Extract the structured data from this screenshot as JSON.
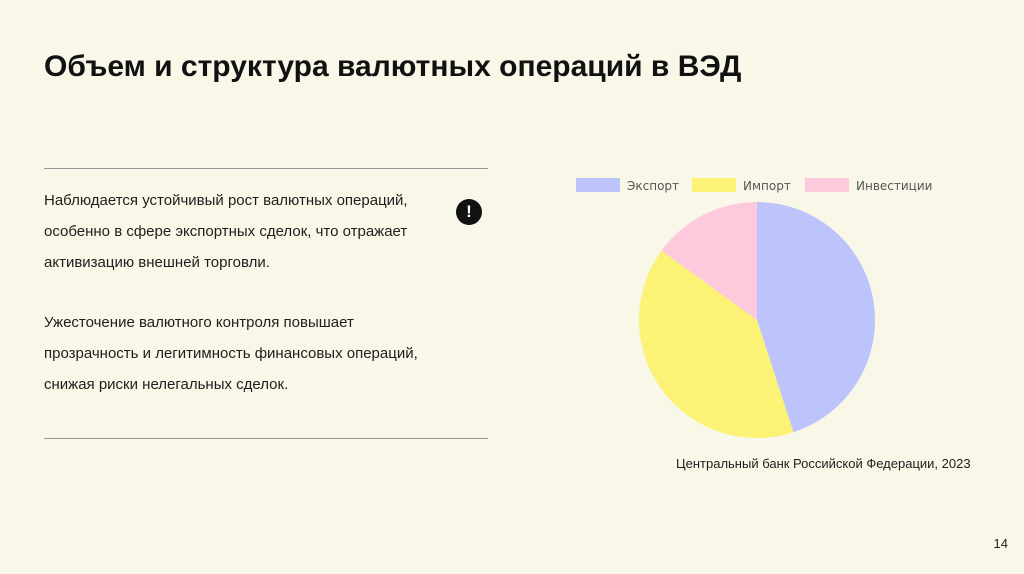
{
  "slide": {
    "title": "Объем и структура валютных операций в ВЭД",
    "paragraphs": [
      "Наблюдается устойчивый рост валютных операций, особенно в сфере экспортных сделок, что отражает активизацию внешней торговли.",
      "Ужесточение валютного контроля повышает прозрачность и легитимность финансовых операций, снижая риски нелегальных сделок."
    ],
    "warning_glyph": "!",
    "source": "Центральный банк Российской Федерации, 2023",
    "page_number": "14"
  },
  "chart_data": {
    "type": "pie",
    "categories": [
      "Экспорт",
      "Импорт",
      "Инвестиции"
    ],
    "values": [
      45,
      40,
      15
    ],
    "colors": [
      "#bcc4fb",
      "#fbf276",
      "#fdc9dd"
    ],
    "legend_position": "top"
  }
}
